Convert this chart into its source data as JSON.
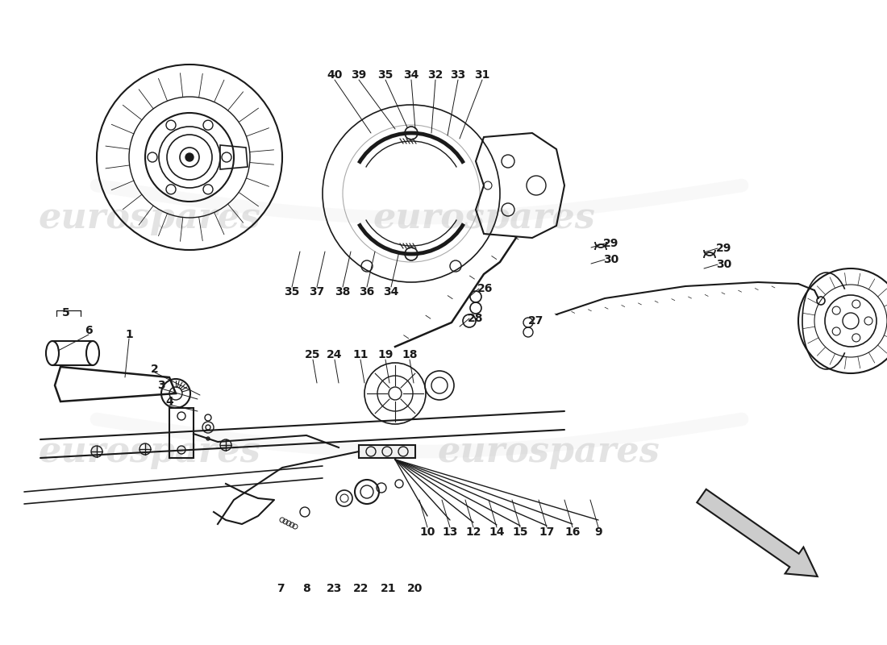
{
  "background_color": "#ffffff",
  "watermark_text": "eurospares",
  "fig_width": 11.0,
  "fig_height": 8.0,
  "dpi": 100,
  "black": "#1a1a1a",
  "gray": "#aaaaaa",
  "light_gray": "#cccccc",
  "top_labels": [
    [
      "40",
      415,
      93
    ],
    [
      "39",
      445,
      93
    ],
    [
      "35",
      478,
      93
    ],
    [
      "34",
      510,
      93
    ],
    [
      "32",
      540,
      93
    ],
    [
      "33",
      568,
      93
    ],
    [
      "31",
      598,
      93
    ]
  ],
  "mid_labels": [
    [
      "35",
      362,
      362
    ],
    [
      "37",
      393,
      362
    ],
    [
      "38",
      425,
      362
    ],
    [
      "36",
      455,
      362
    ],
    [
      "34",
      485,
      362
    ]
  ],
  "right_labels_1": [
    [
      "26",
      602,
      358
    ],
    [
      "28",
      590,
      395
    ]
  ],
  "right_labels_2": [
    [
      "27",
      665,
      398
    ]
  ],
  "clip_labels_mid": [
    [
      "29",
      758,
      302
    ],
    [
      "30",
      758,
      322
    ]
  ],
  "clip_labels_far": [
    [
      "29",
      898,
      308
    ],
    [
      "30",
      898,
      328
    ]
  ],
  "center_lower_labels": [
    [
      "25",
      388,
      440
    ],
    [
      "24",
      415,
      440
    ],
    [
      "11",
      447,
      440
    ],
    [
      "19",
      478,
      440
    ],
    [
      "18",
      508,
      440
    ]
  ],
  "bottom_fan_labels": [
    [
      "10",
      530,
      660
    ],
    [
      "13",
      558,
      660
    ],
    [
      "12",
      587,
      660
    ],
    [
      "14",
      616,
      660
    ],
    [
      "15",
      645,
      660
    ],
    [
      "17",
      678,
      660
    ],
    [
      "16",
      710,
      660
    ],
    [
      "9",
      742,
      660
    ]
  ],
  "very_bottom_labels": [
    [
      "7",
      348,
      730
    ],
    [
      "8",
      380,
      730
    ],
    [
      "23",
      415,
      730
    ],
    [
      "22",
      448,
      730
    ],
    [
      "21",
      482,
      730
    ],
    [
      "20",
      515,
      730
    ]
  ],
  "handbrake_labels": [
    [
      "5",
      82,
      388
    ],
    [
      "6",
      110,
      410
    ],
    [
      "1",
      160,
      415
    ],
    [
      "2",
      192,
      458
    ],
    [
      "3",
      200,
      478
    ],
    [
      "4",
      210,
      498
    ]
  ]
}
